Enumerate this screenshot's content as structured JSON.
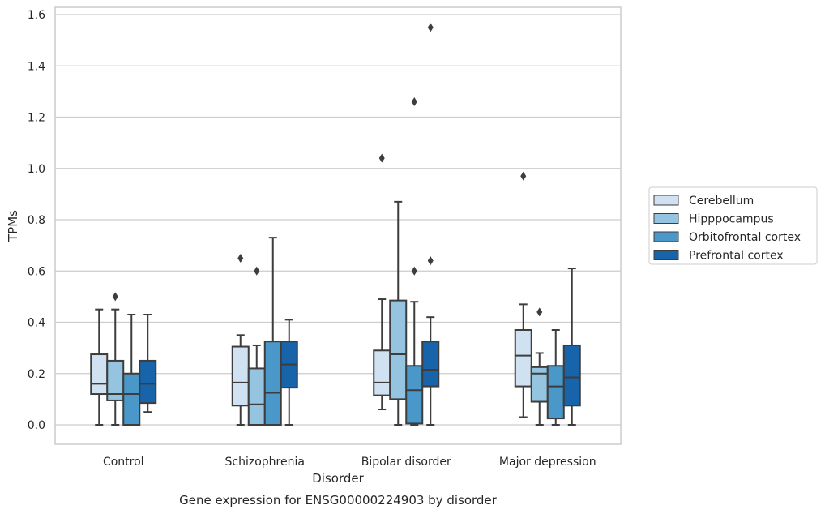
{
  "chart_data": {
    "type": "box",
    "title": "",
    "caption": "Gene expression for ENSG00000224903 by disorder",
    "xlabel": "Disorder",
    "ylabel": "TPMs",
    "ylim": [
      -0.075,
      1.63
    ],
    "yticks": [
      "0.0",
      "0.2",
      "0.4",
      "0.6",
      "0.8",
      "1.0",
      "1.2",
      "1.4",
      "1.6"
    ],
    "grid": "horizontal",
    "legend_position": "right",
    "categories": [
      "Control",
      "Schizophrenia",
      "Bipolar disorder",
      "Major depression"
    ],
    "series": [
      {
        "name": "Cerebellum",
        "color": "#d0e1f2",
        "boxes": [
          {
            "whislo": 0.0,
            "q1": 0.12,
            "med": 0.16,
            "q3": 0.275,
            "whishi": 0.45,
            "fliers": []
          },
          {
            "whislo": 0.0,
            "q1": 0.075,
            "med": 0.165,
            "q3": 0.305,
            "whishi": 0.35,
            "fliers": [
              0.65
            ]
          },
          {
            "whislo": 0.06,
            "q1": 0.115,
            "med": 0.165,
            "q3": 0.29,
            "whishi": 0.49,
            "fliers": [
              1.04
            ]
          },
          {
            "whislo": 0.03,
            "q1": 0.15,
            "med": 0.27,
            "q3": 0.37,
            "whishi": 0.47,
            "fliers": [
              0.97
            ]
          }
        ]
      },
      {
        "name": "Hipppocampus",
        "color": "#94c4df",
        "boxes": [
          {
            "whislo": 0.0,
            "q1": 0.095,
            "med": 0.12,
            "q3": 0.25,
            "whishi": 0.45,
            "fliers": [
              0.5
            ]
          },
          {
            "whislo": 0.0,
            "q1": 0.0,
            "med": 0.08,
            "q3": 0.22,
            "whishi": 0.31,
            "fliers": [
              0.6
            ]
          },
          {
            "whislo": 0.0,
            "q1": 0.1,
            "med": 0.275,
            "q3": 0.485,
            "whishi": 0.87,
            "fliers": []
          },
          {
            "whislo": 0.0,
            "q1": 0.09,
            "med": 0.2,
            "q3": 0.225,
            "whishi": 0.28,
            "fliers": [
              0.44
            ]
          }
        ]
      },
      {
        "name": "Orbitofrontal cortex",
        "color": "#4a98c9",
        "boxes": [
          {
            "whislo": 0.0,
            "q1": 0.0,
            "med": 0.12,
            "q3": 0.2,
            "whishi": 0.43,
            "fliers": []
          },
          {
            "whislo": 0.0,
            "q1": 0.0,
            "med": 0.125,
            "q3": 0.325,
            "whishi": 0.73,
            "fliers": []
          },
          {
            "whislo": 0.0,
            "q1": 0.005,
            "med": 0.135,
            "q3": 0.23,
            "whishi": 0.48,
            "fliers": [
              0.6,
              1.26
            ]
          },
          {
            "whislo": 0.0,
            "q1": 0.025,
            "med": 0.15,
            "q3": 0.23,
            "whishi": 0.37,
            "fliers": []
          }
        ]
      },
      {
        "name": "Prefrontal cortex",
        "color": "#1764ab",
        "boxes": [
          {
            "whislo": 0.05,
            "q1": 0.085,
            "med": 0.16,
            "q3": 0.25,
            "whishi": 0.43,
            "fliers": []
          },
          {
            "whislo": 0.0,
            "q1": 0.145,
            "med": 0.235,
            "q3": 0.325,
            "whishi": 0.41,
            "fliers": []
          },
          {
            "whislo": 0.0,
            "q1": 0.15,
            "med": 0.215,
            "q3": 0.325,
            "whishi": 0.42,
            "fliers": [
              0.64,
              1.55
            ]
          },
          {
            "whislo": 0.0,
            "q1": 0.075,
            "med": 0.185,
            "q3": 0.31,
            "whishi": 0.61,
            "fliers": []
          }
        ]
      }
    ]
  }
}
